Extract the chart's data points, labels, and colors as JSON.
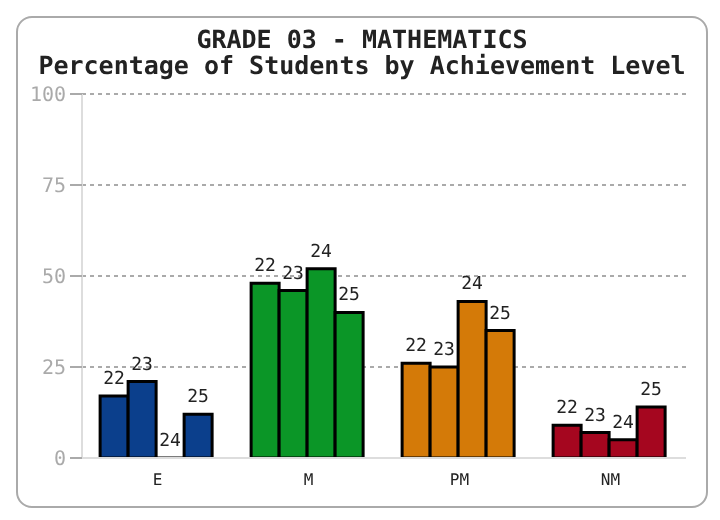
{
  "chart_data": {
    "type": "bar",
    "title": "GRADE 03 - MATHEMATICS",
    "subtitle": "Percentage of Students by Achievement Level",
    "categories": [
      "E",
      "M",
      "PM",
      "NM"
    ],
    "series": [
      {
        "name": "22",
        "colors": [
          "#0b3f8c",
          "#0b9627",
          "#d47a08",
          "#a5061f"
        ],
        "values": [
          17,
          48,
          26,
          9
        ]
      },
      {
        "name": "23",
        "colors": [
          "#0b3f8c",
          "#0b9627",
          "#d47a08",
          "#a5061f"
        ],
        "values": [
          21,
          46,
          25,
          7
        ]
      },
      {
        "name": "24",
        "colors": [
          "#0b3f8c",
          "#0b9627",
          "#d47a08",
          "#a5061f"
        ],
        "values": [
          0,
          52,
          43,
          5
        ]
      },
      {
        "name": "25",
        "colors": [
          "#0b3f8c",
          "#0b9627",
          "#d47a08",
          "#a5061f"
        ],
        "values": [
          12,
          40,
          35,
          14
        ]
      }
    ],
    "ylim": [
      0,
      100
    ],
    "yticks": [
      0,
      25,
      50,
      75,
      100
    ],
    "grid": "y",
    "legend": false
  }
}
